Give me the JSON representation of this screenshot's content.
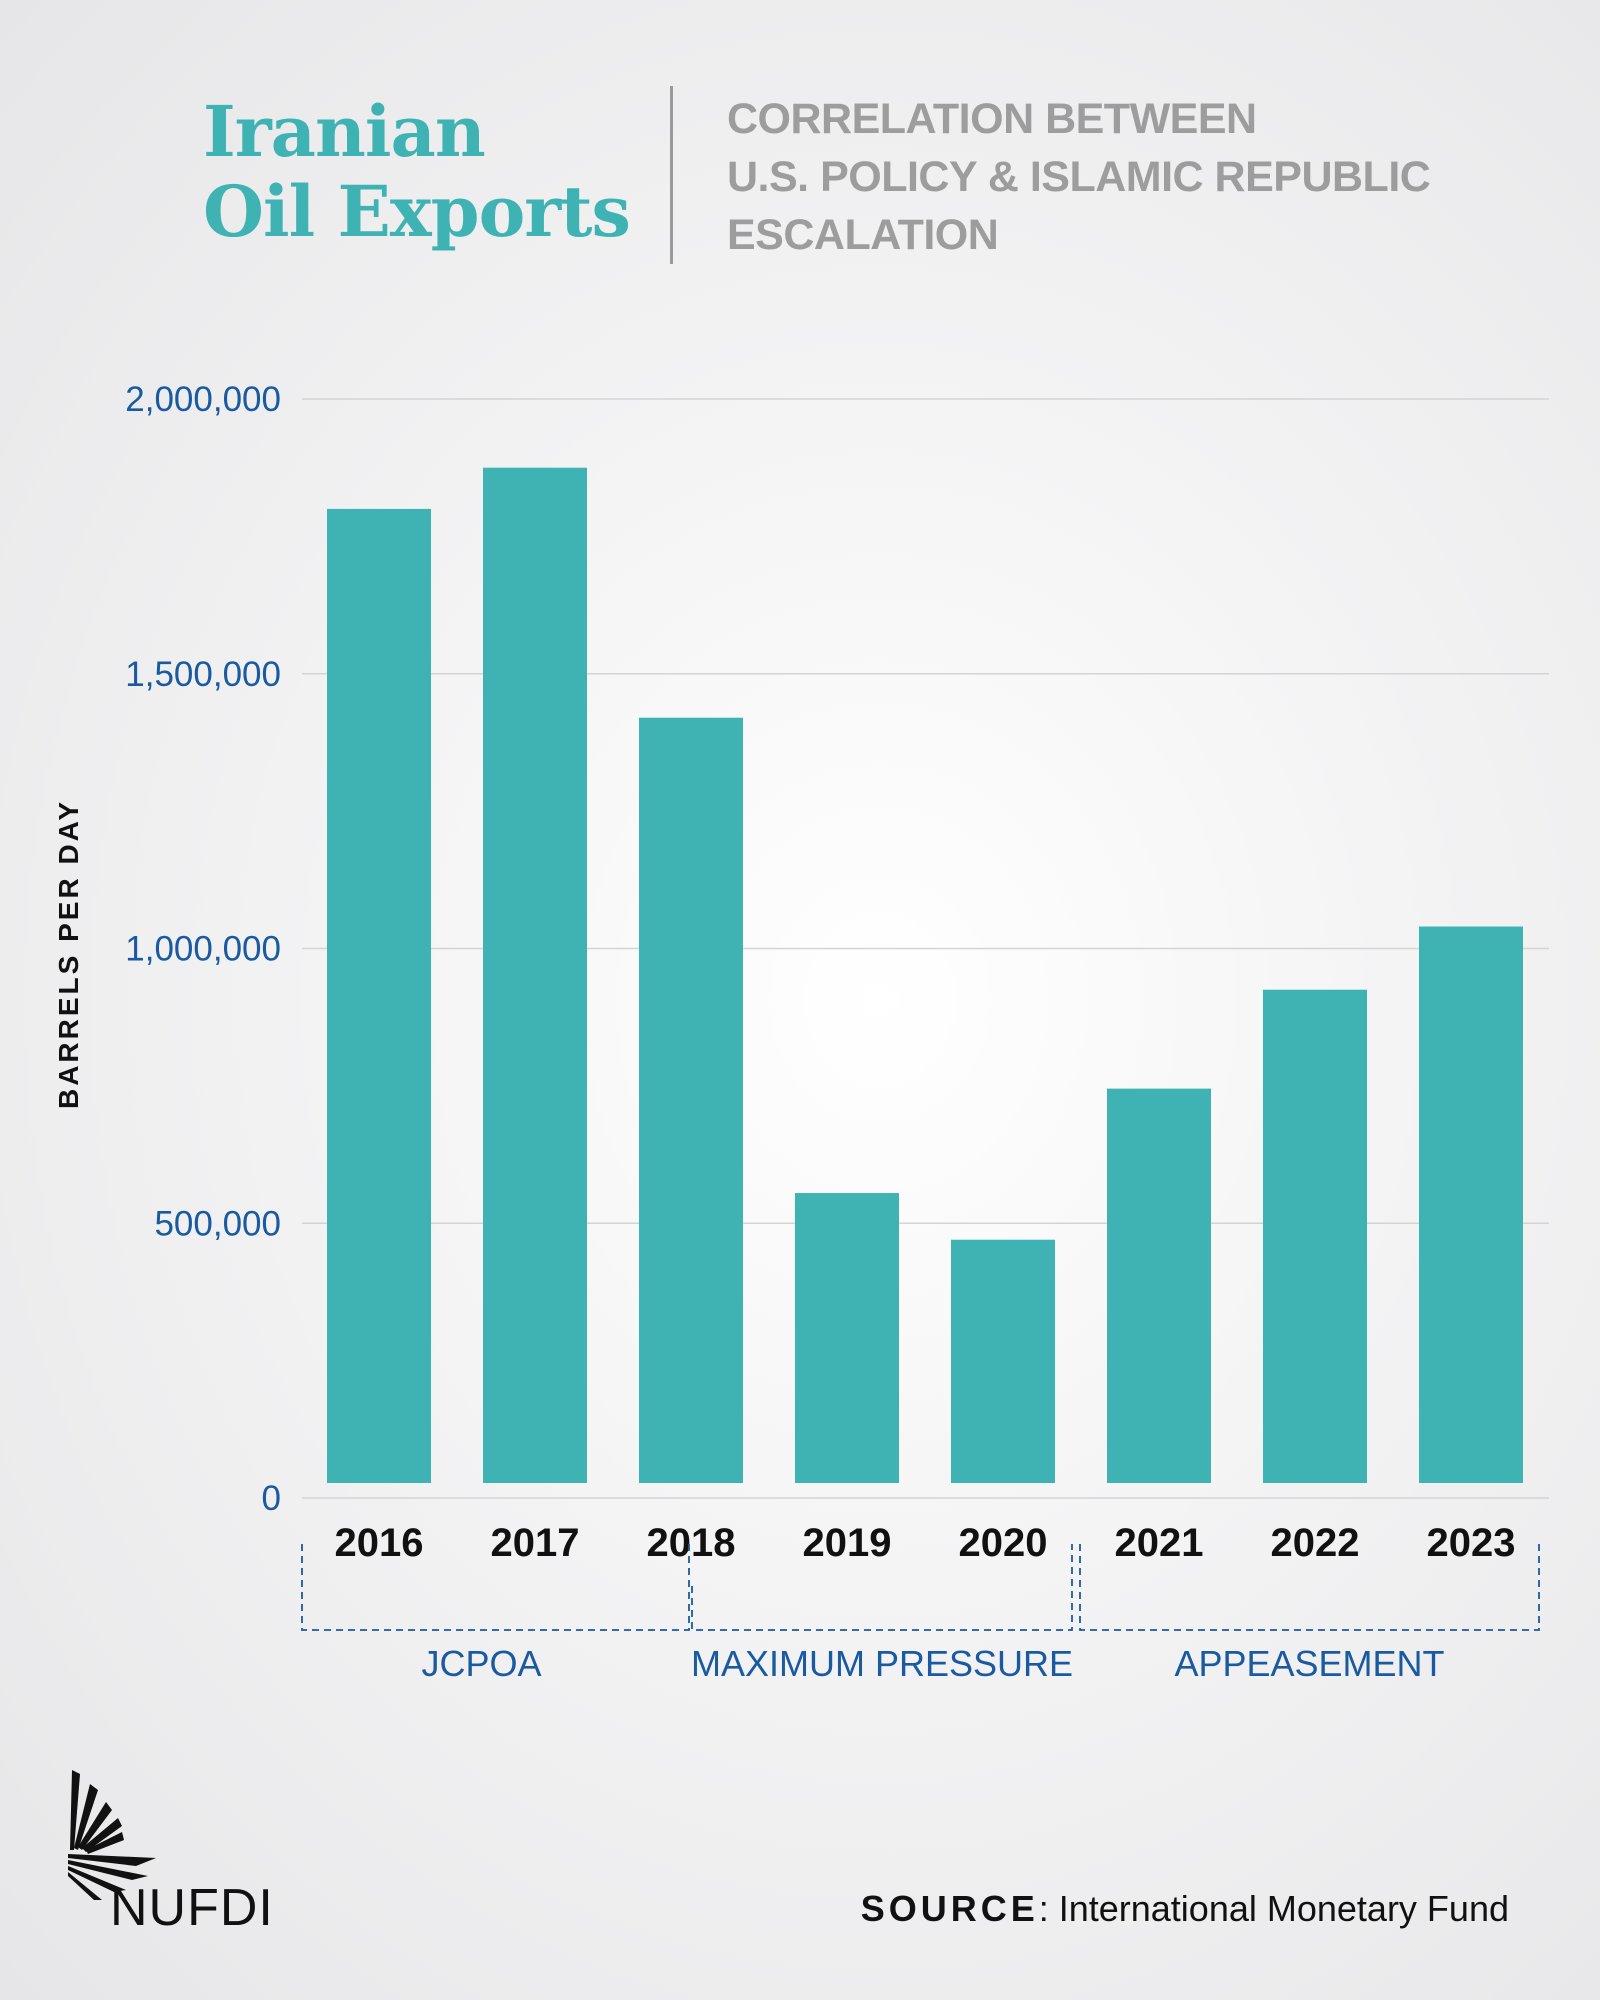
{
  "header": {
    "title_lines": [
      "Iranian",
      "Oil Exports"
    ],
    "subtitle_lines": [
      "CORRELATION BETWEEN",
      "U.S. POLICY & ISLAMIC REPUBLIC",
      "ESCALATION"
    ]
  },
  "chart_data": {
    "type": "bar",
    "title": "Iranian Oil Exports",
    "ylabel": "BARRELS PER DAY",
    "xlabel": "",
    "categories": [
      "2016",
      "2017",
      "2018",
      "2019",
      "2020",
      "2021",
      "2022",
      "2023"
    ],
    "values": [
      1800000,
      1875000,
      1420000,
      555000,
      470000,
      745000,
      925000,
      1040000
    ],
    "ylim": [
      0,
      2000000
    ],
    "yticks": [
      0,
      500000,
      1000000,
      1500000,
      2000000
    ],
    "ytick_labels": [
      "0",
      "500,000",
      "1,000,000",
      "1,500,000",
      "2,000,000"
    ],
    "grid": true,
    "groups": [
      {
        "label": "JCPOA",
        "from": "2016",
        "to": "2018"
      },
      {
        "label": "MAXIMUM PRESSURE",
        "from": "2018",
        "to": "2020"
      },
      {
        "label": "APPEASEMENT",
        "from": "2021",
        "to": "2023"
      }
    ],
    "colors": {
      "bar": "#3fb3b3",
      "axis_text": "#1a5aa0",
      "grid": "#d4d4d6"
    }
  },
  "footer": {
    "source_label": "SOURCE",
    "source_text": ": International Monetary Fund",
    "logo_text": "NUFDI"
  }
}
